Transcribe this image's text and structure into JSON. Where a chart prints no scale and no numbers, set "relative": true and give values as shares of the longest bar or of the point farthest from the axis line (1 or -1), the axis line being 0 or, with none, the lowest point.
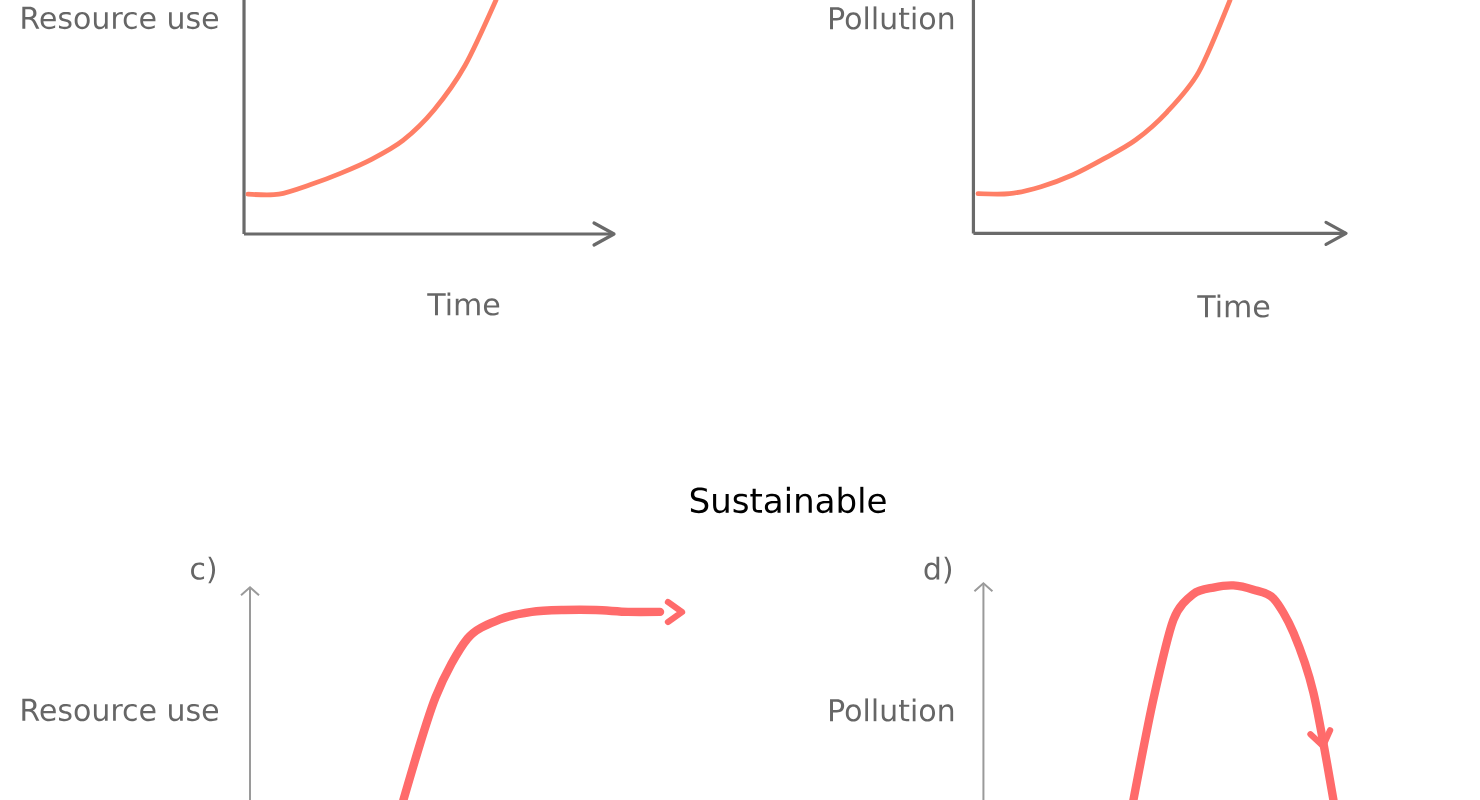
{
  "chart_data": [
    {
      "type": "line",
      "ylabel": "Resource use",
      "xlabel": "Time",
      "relative": true,
      "color": "#ff7f66",
      "categories": [
        null,
        null,
        null,
        null,
        null,
        null,
        null,
        null,
        null
      ],
      "values": [
        0.17,
        0.17,
        0.21,
        0.26,
        0.32,
        0.4,
        0.53,
        0.72,
        1
      ]
    },
    {
      "type": "line",
      "ylabel": "Pollution",
      "xlabel": "Time",
      "relative": true,
      "color": "#ff7f66",
      "categories": [
        null,
        null,
        null,
        null,
        null,
        null,
        null,
        null,
        null
      ],
      "values": [
        0.17,
        0.17,
        0.2,
        0.25,
        0.32,
        0.4,
        0.52,
        0.69,
        1
      ]
    },
    {
      "type": "line",
      "title": "c)",
      "ylabel": "Resource use",
      "relative": true,
      "color": "#ff6b6b",
      "annotations": [
        "Sustainable"
      ],
      "categories": [
        null,
        null,
        null,
        null,
        null,
        null,
        null,
        null,
        null
      ],
      "values": [
        0,
        0.54,
        0.85,
        0.95,
        0.99,
        1,
        1,
        0.99,
        0.99
      ]
    },
    {
      "type": "line",
      "title": "d)",
      "ylabel": "Pollution",
      "relative": true,
      "color": "#ff6b6b",
      "categories": [
        null,
        null,
        null,
        null,
        null,
        null,
        null,
        null,
        null,
        null,
        null
      ],
      "values": [
        0,
        0.47,
        0.84,
        0.96,
        0.99,
        1,
        0.98,
        0.94,
        0.78,
        0.5,
        0
      ]
    }
  ]
}
